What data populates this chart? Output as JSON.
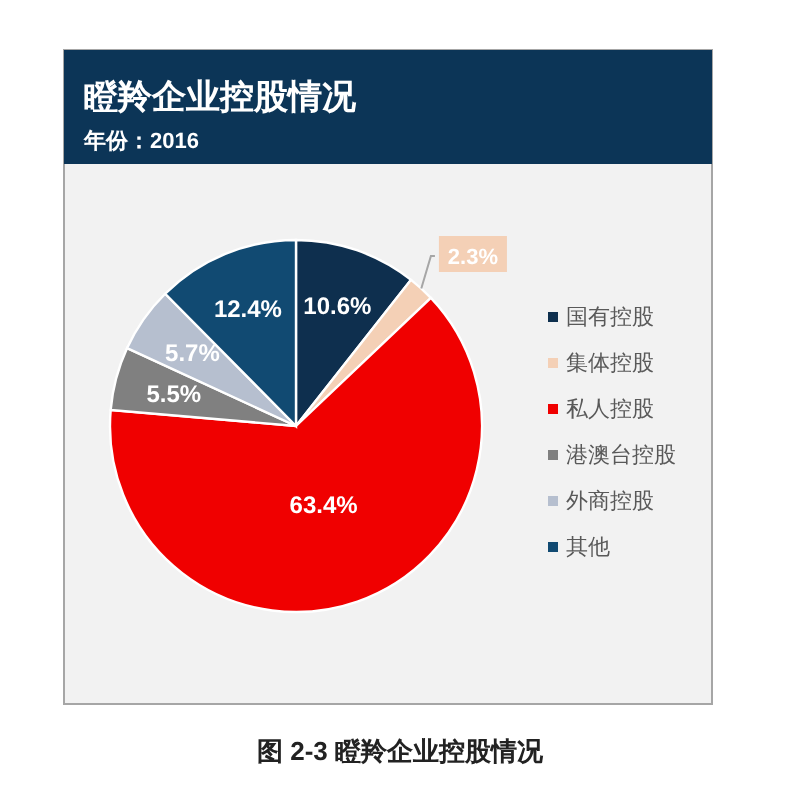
{
  "chart_data": {
    "type": "pie",
    "title": "瞪羚企业控股情况",
    "subtitle": "年份：2016",
    "categories": [
      "国有控股",
      "集体控股",
      "私人控股",
      "港澳台控股",
      "外商控股",
      "其他"
    ],
    "values": [
      10.6,
      2.3,
      63.4,
      5.5,
      5.7,
      12.4
    ],
    "colors": [
      "#0e2f4e",
      "#f4d0b6",
      "#f00000",
      "#808080",
      "#b6bfcf",
      "#114a72"
    ],
    "value_labels": [
      "10.6%",
      "2.3%",
      "63.4%",
      "5.5%",
      "5.7%",
      "12.4%"
    ],
    "legend": "right",
    "annotations": [
      "图 2-3 瞪羚企业控股情况"
    ]
  }
}
